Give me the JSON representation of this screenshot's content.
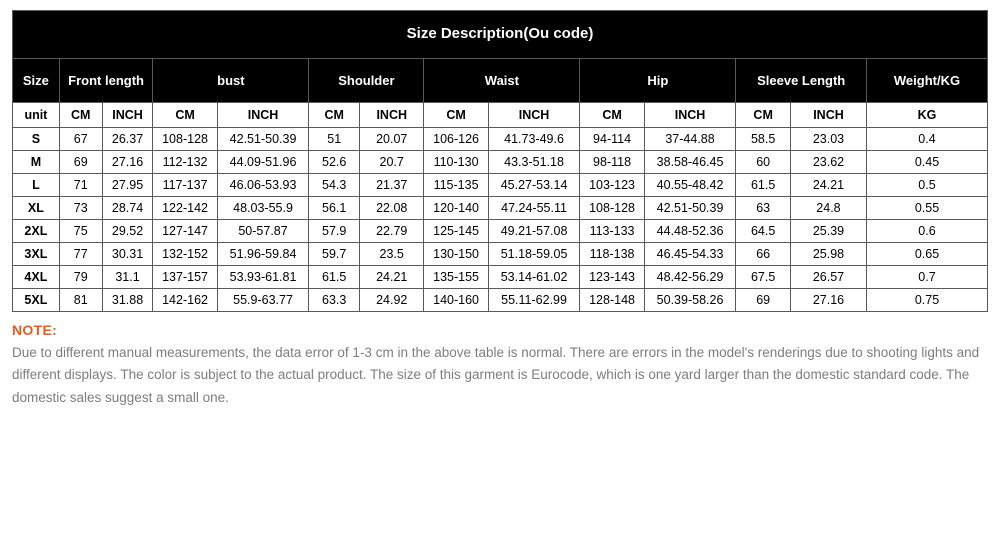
{
  "table": {
    "title": "Size Description(Ou code)",
    "groups": [
      "Size",
      "Front length",
      "bust",
      "Shoulder",
      "Waist",
      "Hip",
      "Sleeve Length",
      "Weight/KG"
    ],
    "unitRow": [
      "unit",
      "CM",
      "INCH",
      "CM",
      "INCH",
      "CM",
      "INCH",
      "CM",
      "INCH",
      "CM",
      "INCH",
      "CM",
      "INCH",
      "KG"
    ],
    "rows": [
      [
        "S",
        "67",
        "26.37",
        "108-128",
        "42.51-50.39",
        "51",
        "20.07",
        "106-126",
        "41.73-49.6",
        "94-114",
        "37-44.88",
        "58.5",
        "23.03",
        "0.4"
      ],
      [
        "M",
        "69",
        "27.16",
        "112-132",
        "44.09-51.96",
        "52.6",
        "20.7",
        "110-130",
        "43.3-51.18",
        "98-118",
        "38.58-46.45",
        "60",
        "23.62",
        "0.45"
      ],
      [
        "L",
        "71",
        "27.95",
        "117-137",
        "46.06-53.93",
        "54.3",
        "21.37",
        "115-135",
        "45.27-53.14",
        "103-123",
        "40.55-48.42",
        "61.5",
        "24.21",
        "0.5"
      ],
      [
        "XL",
        "73",
        "28.74",
        "122-142",
        "48.03-55.9",
        "56.1",
        "22.08",
        "120-140",
        "47.24-55.11",
        "108-128",
        "42.51-50.39",
        "63",
        "24.8",
        "0.55"
      ],
      [
        "2XL",
        "75",
        "29.52",
        "127-147",
        "50-57.87",
        "57.9",
        "22.79",
        "125-145",
        "49.21-57.08",
        "113-133",
        "44.48-52.36",
        "64.5",
        "25.39",
        "0.6"
      ],
      [
        "3XL",
        "77",
        "30.31",
        "132-152",
        "51.96-59.84",
        "59.7",
        "23.5",
        "130-150",
        "51.18-59.05",
        "118-138",
        "46.45-54.33",
        "66",
        "25.98",
        "0.65"
      ],
      [
        "4XL",
        "79",
        "31.1",
        "137-157",
        "53.93-61.81",
        "61.5",
        "24.21",
        "135-155",
        "53.14-61.02",
        "123-143",
        "48.42-56.29",
        "67.5",
        "26.57",
        "0.7"
      ],
      [
        "5XL",
        "81",
        "31.88",
        "142-162",
        "55.9-63.77",
        "63.3",
        "24.92",
        "140-160",
        "55.11-62.99",
        "128-148",
        "50.39-58.26",
        "69",
        "27.16",
        "0.75"
      ]
    ],
    "style": {
      "header_bg": "#000000",
      "header_fg": "#ffffff",
      "cell_bg": "#ffffff",
      "cell_fg": "#000000",
      "border_color": "#5a5a5a",
      "title_fontsize": 15,
      "group_fontsize": 13,
      "cell_fontsize": 12.5
    }
  },
  "note": {
    "label": "NOTE:",
    "text": "Due to different manual measurements, the data error of 1-3 cm in the above table is normal. There are errors in the model's renderings due to shooting lights and different displays. The color is subject to the actual product. The size of this garment is Eurocode, which is one yard larger than the domestic standard code. The domestic sales suggest a small one.",
    "label_color": "#e95c20",
    "text_color": "#7d7d7d",
    "label_fontsize": 14,
    "text_fontsize": 13.5
  }
}
